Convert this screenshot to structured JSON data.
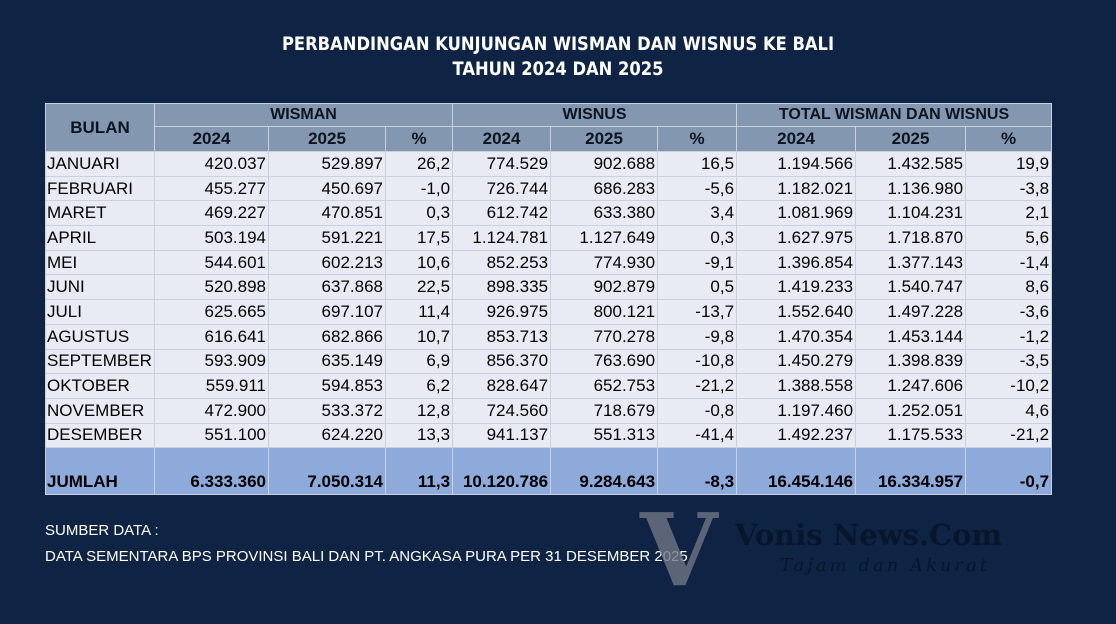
{
  "title": {
    "line1": "PERBANDINGAN KUNJUNGAN WISMAN DAN WISNUS KE BALI",
    "line2": "TAHUN 2024 DAN 2025"
  },
  "table": {
    "month_header": "BULAN",
    "groups": [
      "WISMAN",
      "WISNUS",
      "TOTAL WISMAN DAN WISNUS"
    ],
    "subheaders": [
      "2024",
      "2025",
      "%",
      "2024",
      "2025",
      "%",
      "2024",
      "2025",
      "%"
    ],
    "rows": [
      [
        "JANUARI",
        "420.037",
        "529.897",
        "26,2",
        "774.529",
        "902.688",
        "16,5",
        "1.194.566",
        "1.432.585",
        "19,9"
      ],
      [
        "FEBRUARI",
        "455.277",
        "450.697",
        "-1,0",
        "726.744",
        "686.283",
        "-5,6",
        "1.182.021",
        "1.136.980",
        "-3,8"
      ],
      [
        "MARET",
        "469.227",
        "470.851",
        "0,3",
        "612.742",
        "633.380",
        "3,4",
        "1.081.969",
        "1.104.231",
        "2,1"
      ],
      [
        "APRIL",
        "503.194",
        "591.221",
        "17,5",
        "1.124.781",
        "1.127.649",
        "0,3",
        "1.627.975",
        "1.718.870",
        "5,6"
      ],
      [
        "MEI",
        "544.601",
        "602.213",
        "10,6",
        "852.253",
        "774.930",
        "-9,1",
        "1.396.854",
        "1.377.143",
        "-1,4"
      ],
      [
        "JUNI",
        "520.898",
        "637.868",
        "22,5",
        "898.335",
        "902.879",
        "0,5",
        "1.419.233",
        "1.540.747",
        "8,6"
      ],
      [
        "JULI",
        "625.665",
        "697.107",
        "11,4",
        "926.975",
        "800.121",
        "-13,7",
        "1.552.640",
        "1.497.228",
        "-3,6"
      ],
      [
        "AGUSTUS",
        "616.641",
        "682.866",
        "10,7",
        "853.713",
        "770.278",
        "-9,8",
        "1.470.354",
        "1.453.144",
        "-1,2"
      ],
      [
        "SEPTEMBER",
        "593.909",
        "635.149",
        "6,9",
        "856.370",
        "763.690",
        "-10,8",
        "1.450.279",
        "1.398.839",
        "-3,5"
      ],
      [
        "OKTOBER",
        "559.911",
        "594.853",
        "6,2",
        "828.647",
        "652.753",
        "-21,2",
        "1.388.558",
        "1.247.606",
        "-10,2"
      ],
      [
        "NOVEMBER",
        "472.900",
        "533.372",
        "12,8",
        "724.560",
        "718.679",
        "-0,8",
        "1.197.460",
        "1.252.051",
        "4,6"
      ],
      [
        "DESEMBER",
        "551.100",
        "624.220",
        "13,3",
        "941.137",
        "551.313",
        "-41,4",
        "1.492.237",
        "1.175.533",
        "-21,2"
      ]
    ],
    "total": [
      "JUMLAH",
      "6.333.360",
      "7.050.314",
      "11,3",
      "10.120.786",
      "9.284.643",
      "-8,3",
      "16.454.146",
      "16.334.957",
      "-0,7"
    ]
  },
  "source": {
    "label": "SUMBER DATA :",
    "text": "DATA SEMENTARA BPS PROVINSI BALI DAN PT. ANGKASA PURA PER 31 DESEMBER 2025"
  },
  "watermark": {
    "logo_letter": "V",
    "name": "Vonis News.Com",
    "tagline": "Tajam dan Akurat"
  },
  "colors": {
    "background": "#0f2444",
    "header": "#8497b0",
    "row": "#e8ebf3",
    "total_row": "#8eaadb"
  }
}
